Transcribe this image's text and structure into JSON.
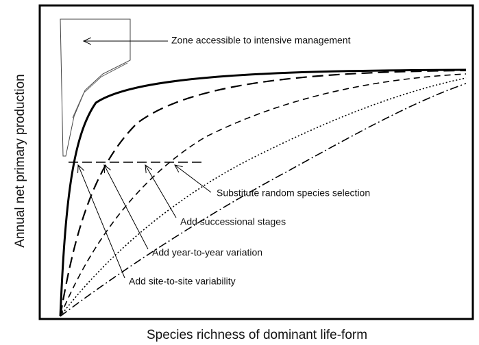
{
  "diagram": {
    "y_axis_label": "Annual net primary production",
    "x_axis_label": "Species richness of dominant life-form",
    "annotations": {
      "zone": "Zone accessible to intensive management",
      "random": "Substitute random species selection",
      "successional": "Add successional stages",
      "year": "Add year-to-year variation",
      "site": "Add site-to-site variability"
    }
  }
}
